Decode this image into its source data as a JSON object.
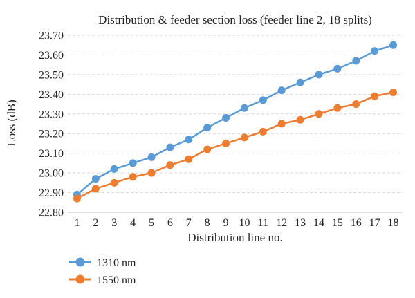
{
  "chart_data": {
    "type": "line",
    "title": "Distribution & feeder section loss (feeder line 2, 18 splits)",
    "xlabel": "Distribution line no.",
    "ylabel": "Loss (dB)",
    "categories": [
      "1",
      "2",
      "3",
      "4",
      "5",
      "6",
      "7",
      "8",
      "9",
      "10",
      "11",
      "12",
      "13",
      "14",
      "15",
      "16",
      "17",
      "18"
    ],
    "ylim": [
      22.8,
      23.7
    ],
    "yticks": [
      "22.80",
      "22.90",
      "23.00",
      "23.10",
      "23.20",
      "23.30",
      "23.40",
      "23.50",
      "23.60",
      "23.70"
    ],
    "grid": true,
    "legend_position": "bottom-left",
    "series": [
      {
        "name": "1310 nm",
        "color": "#5b9bd5",
        "values": [
          22.89,
          22.97,
          23.02,
          23.05,
          23.08,
          23.13,
          23.17,
          23.23,
          23.28,
          23.33,
          23.37,
          23.42,
          23.46,
          23.5,
          23.53,
          23.57,
          23.62,
          23.65
        ]
      },
      {
        "name": "1550 nm",
        "color": "#ed7d31",
        "values": [
          22.87,
          22.92,
          22.95,
          22.98,
          23.0,
          23.04,
          23.07,
          23.12,
          23.15,
          23.18,
          23.21,
          23.25,
          23.27,
          23.3,
          23.33,
          23.35,
          23.39,
          23.41
        ]
      }
    ]
  }
}
